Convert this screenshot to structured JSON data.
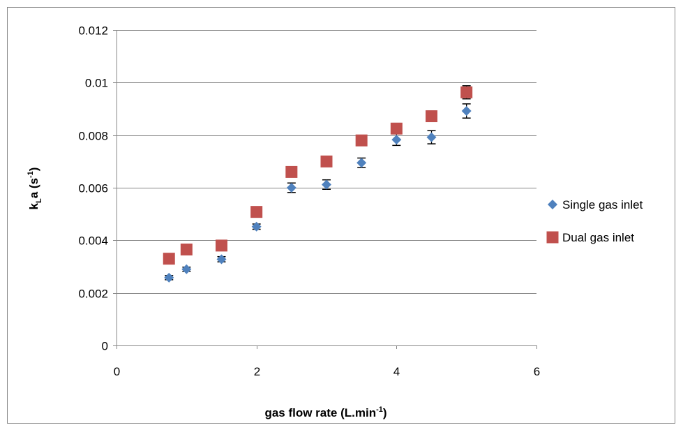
{
  "chart_data": {
    "type": "scatter",
    "xlabel": {
      "main": "gas flow rate (L.min",
      "sup": "-1",
      "tail": ")"
    },
    "ylabel": {
      "base": "k",
      "sub": "L",
      "mid": "a (s",
      "sup": "-1",
      "tail": ")"
    },
    "xlim": [
      0,
      6
    ],
    "ylim": [
      0,
      0.012
    ],
    "x_ticks": [
      0,
      2,
      4,
      6
    ],
    "x_tick_labels": [
      "0",
      "2",
      "4",
      "6"
    ],
    "y_ticks": [
      0,
      0.002,
      0.004,
      0.006,
      0.008,
      0.01,
      0.012
    ],
    "y_tick_labels": [
      "0",
      "0.002",
      "0.004",
      "0.006",
      "0.008",
      "0.01",
      "0.012"
    ],
    "grid": "horizontal major",
    "legend_position": "right",
    "series": [
      {
        "name": "Single gas inlet",
        "marker": "diamond",
        "color": "#4F81BD",
        "x": [
          0.75,
          1.0,
          1.5,
          2.0,
          2.5,
          3.0,
          3.5,
          4.0,
          4.5,
          5.0
        ],
        "y": [
          0.00258,
          0.0029,
          0.00328,
          0.00452,
          0.006,
          0.00612,
          0.00695,
          0.00783,
          0.00792,
          0.00892
        ],
        "err": [
          8e-05,
          8e-05,
          0.0001,
          0.0001,
          0.00018,
          0.00018,
          0.00018,
          0.00022,
          0.00025,
          0.00027
        ]
      },
      {
        "name": "Dual gas inlet",
        "marker": "square",
        "color": "#C0504D",
        "x": [
          0.75,
          1.0,
          1.5,
          2.0,
          2.5,
          3.0,
          3.5,
          4.0,
          4.5,
          5.0
        ],
        "y": [
          0.0033,
          0.00365,
          0.0038,
          0.00508,
          0.0066,
          0.007,
          0.0078,
          0.00825,
          0.00872,
          0.00963
        ],
        "err": [
          5e-05,
          5e-05,
          5e-05,
          6e-05,
          8e-05,
          8e-05,
          0.00018,
          0.0002,
          0.0002,
          0.00025
        ]
      }
    ]
  }
}
